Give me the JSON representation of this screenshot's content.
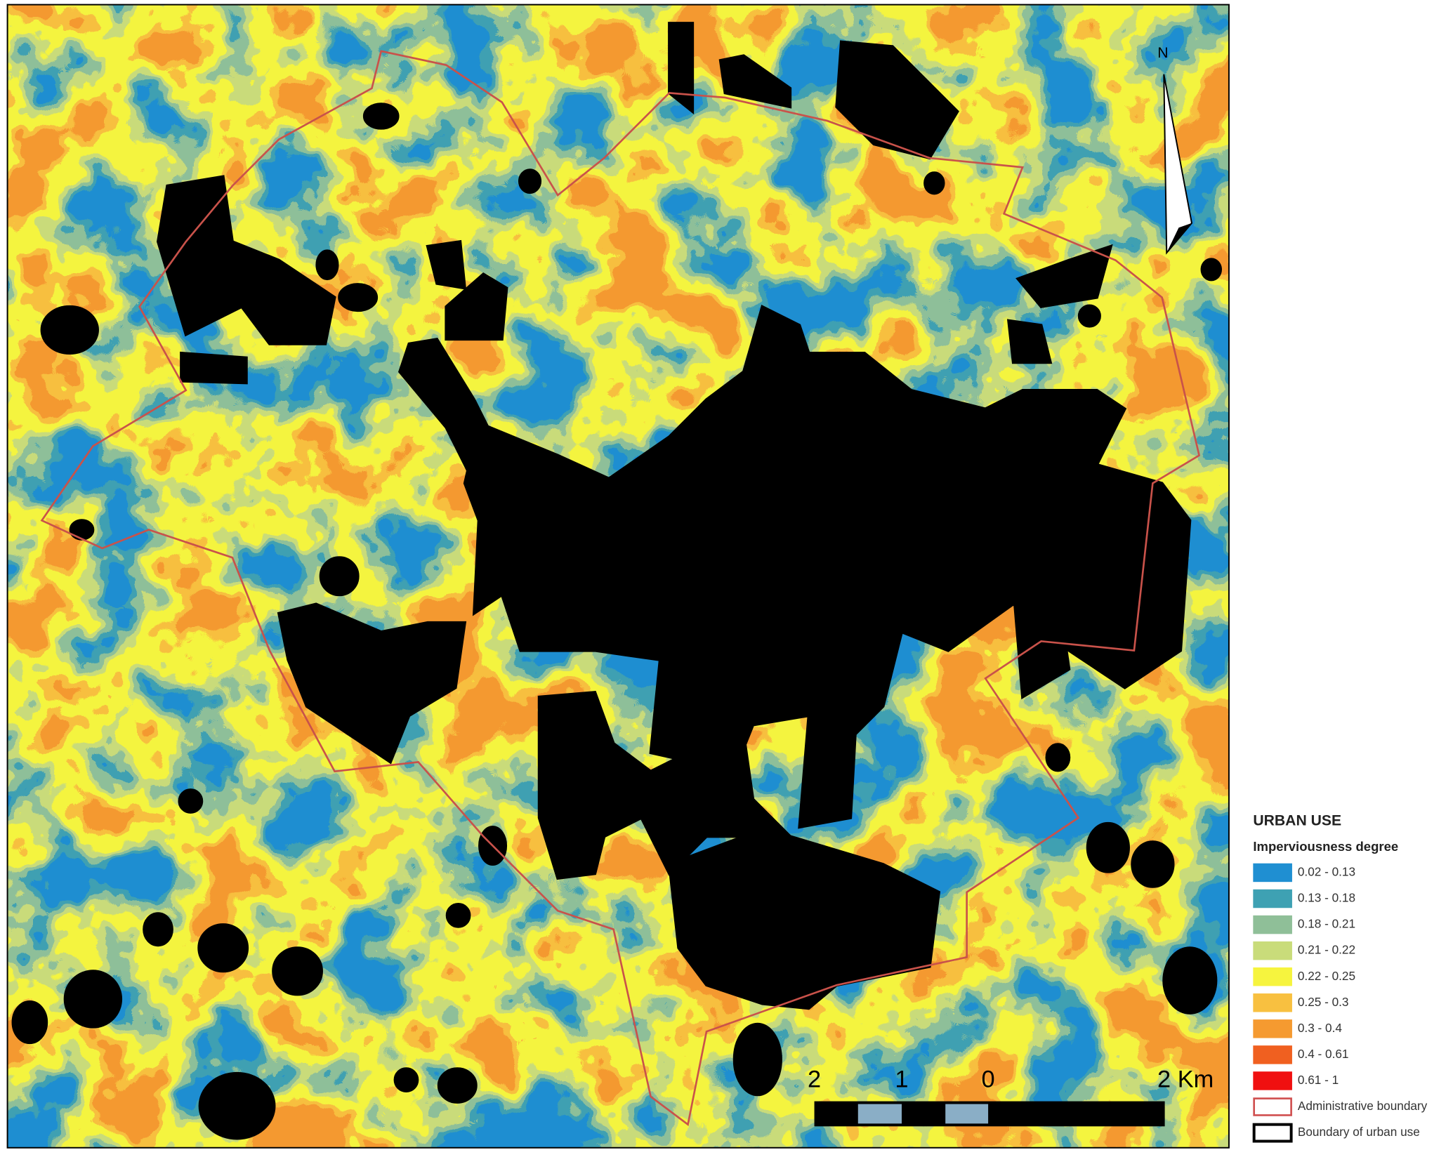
{
  "legend": {
    "title": "URBAN USE",
    "subtitle": "Imperviousness degree",
    "classes": [
      {
        "label": "0.02 - 0.13",
        "color": "#1f8fd2"
      },
      {
        "label": "0.13 - 0.18",
        "color": "#3ea1b3"
      },
      {
        "label": "0.18 - 0.21",
        "color": "#8fbf98"
      },
      {
        "label": "0.21 - 0.22",
        "color": "#c9dc7a"
      },
      {
        "label": "0.22 - 0.25",
        "color": "#f6f43e"
      },
      {
        "label": "0.25 - 0.3",
        "color": "#f8c040"
      },
      {
        "label": "0.3 - 0.4",
        "color": "#f59a30"
      },
      {
        "label": "0.4 - 0.61",
        "color": "#f06020"
      },
      {
        "label": "0.61 - 1",
        "color": "#f01010"
      }
    ],
    "boundaries": [
      {
        "label": "Administrative boundary",
        "color": "#d05050"
      },
      {
        "label": "Boundary of urban use",
        "color": "#000000"
      }
    ]
  },
  "scale_bar": {
    "labels": [
      "2",
      "1",
      "0",
      "2 Km"
    ]
  },
  "north_arrow": {
    "label": "N"
  }
}
